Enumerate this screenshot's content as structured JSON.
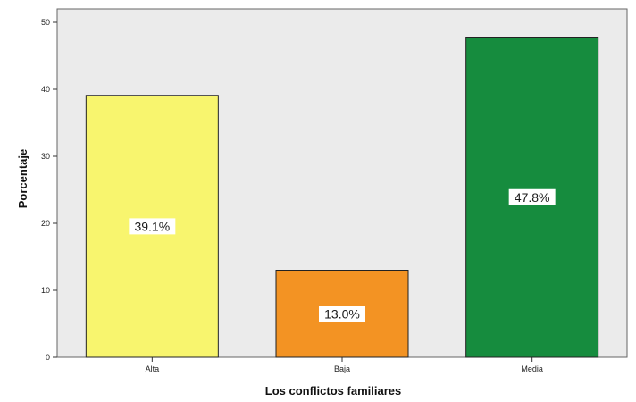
{
  "chart_data": {
    "type": "bar",
    "title": "",
    "xlabel": "Los conflictos familiares",
    "ylabel": "Porcentaje",
    "categories": [
      "Alta",
      "Baja",
      "Media"
    ],
    "values": [
      39.1,
      13.0,
      47.8
    ],
    "data_labels": [
      "39.1%",
      "13.0%",
      "47.8%"
    ],
    "bar_colors": [
      "#f8f56e",
      "#f39323",
      "#168c3e"
    ],
    "ylim": [
      0,
      52
    ],
    "yticks": [
      0,
      10,
      20,
      30,
      40,
      50
    ],
    "grid": false,
    "legend": "none",
    "plot_background": "#ebebeb"
  }
}
